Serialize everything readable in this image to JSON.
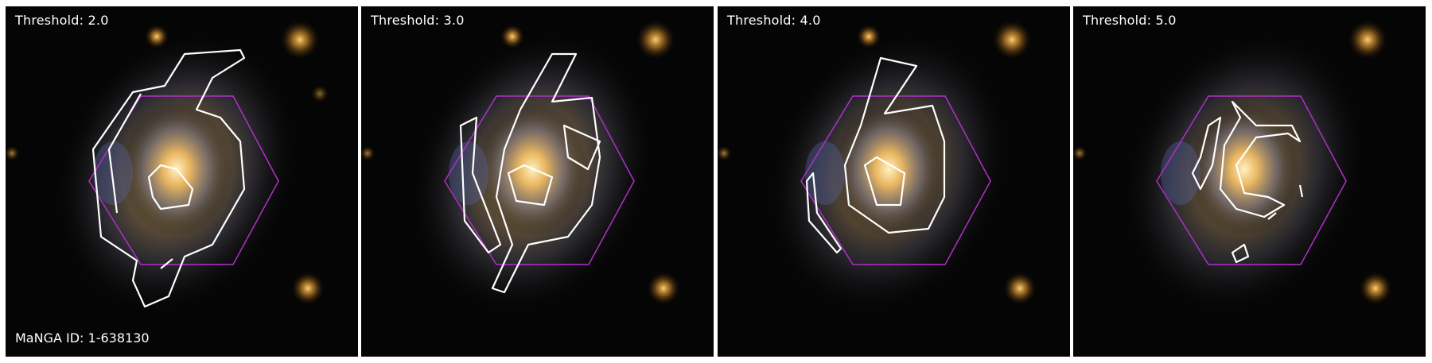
{
  "figure": {
    "panels": [
      {
        "id": "panel-0",
        "threshold_label": "Threshold: 2.0"
      },
      {
        "id": "panel-1",
        "threshold_label": "Threshold: 3.0"
      },
      {
        "id": "panel-2",
        "threshold_label": "Threshold: 4.0"
      },
      {
        "id": "panel-3",
        "threshold_label": "Threshold: 5.0"
      }
    ],
    "manga_id_label": "MaNGA ID: 1-638130"
  },
  "colors": {
    "background": "#000000",
    "hexagon": "#b030c8",
    "contour": "#ffffff",
    "galaxy_core": "#f4c060",
    "spiral_arms": "#7a84b8",
    "frame_gap": "#ffffff"
  }
}
